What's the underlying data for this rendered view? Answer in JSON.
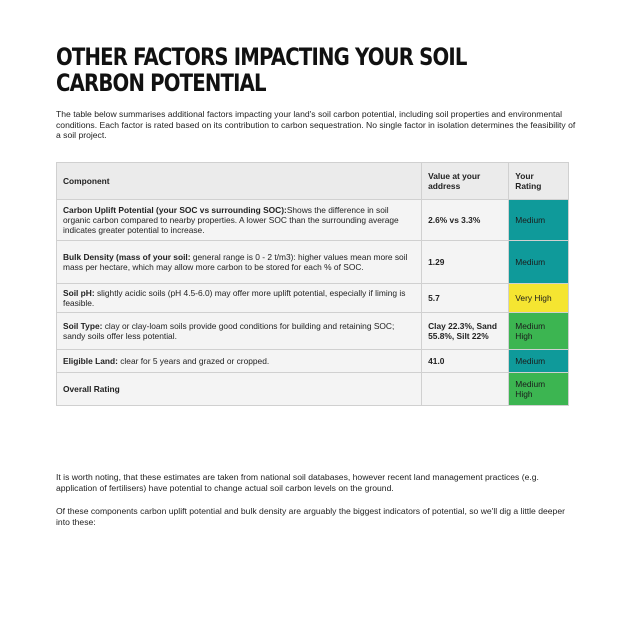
{
  "title": "OTHER FACTORS IMPACTING YOUR SOIL CARBON POTENTIAL",
  "intro": "The table below summarises additional factors impacting your land's soil carbon potential, including soil properties and environmental conditions. Each factor is rated based on its contribution to carbon sequestration. No single factor in isolation determines the feasibility of a soil project.",
  "table": {
    "headers": [
      "Component",
      "Value at your address",
      "Your Rating"
    ],
    "rows": [
      {
        "label": "Carbon Uplift Potential (your SOC vs surrounding SOC):",
        "desc": "Shows the difference in soil organic carbon compared to nearby properties. A lower SOC than the surrounding average indicates greater potential to increase.",
        "value": "2.6% vs 3.3%",
        "rating": "Medium",
        "color": "#0f9a9a"
      },
      {
        "label": "Bulk Density (mass of your soil:",
        "desc": " general range is 0 - 2 t/m3): higher values mean more soil mass per hectare, which may allow more carbon to be stored for each % of SOC.",
        "value": "1.29",
        "rating": "Medium",
        "color": "#0f9a9a"
      },
      {
        "label": "Soil pH:",
        "desc": " slightly acidic soils (pH 4.5-6.0) may offer more uplift potential, especially if liming is feasible.",
        "value": "5.7",
        "rating": "Very High",
        "color": "#f5e531"
      },
      {
        "label": "Soil Type:",
        "desc": " clay or clay-loam soils provide good conditions for building and retaining SOC; sandy soils offer less potential.",
        "value": "Clay 22.3%, Sand 55.8%, Silt 22%",
        "rating": "Medium High",
        "color": "#3cb551"
      },
      {
        "label": "Eligible Land:",
        "desc": " clear for 5 years and grazed or cropped.",
        "value": "41.0",
        "rating": "Medium",
        "color": "#0f9a9a"
      },
      {
        "label": "Overall Rating",
        "desc": "",
        "value": "",
        "rating": "Medium High",
        "color": "#3cb551"
      }
    ]
  },
  "notes": [
    "It is worth noting, that these estimates are taken from national soil databases, however recent land management practices (e.g. application of fertilisers) have potential to change actual soil carbon levels on the ground.",
    "Of these components carbon uplift potential and bulk density are arguably the biggest indicators of potential, so we'll dig a little deeper into these:"
  ]
}
